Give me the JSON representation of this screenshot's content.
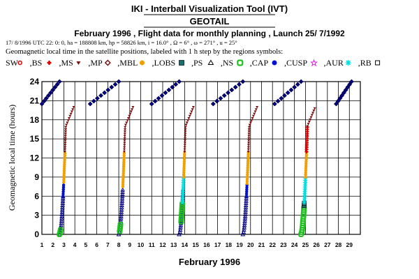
{
  "header": {
    "title": "IKI - Interball Visualization Tool (IVT)",
    "satellite": "GEOTAIL",
    "subtitle": "February 1996 ,  Flight data for monthly planning ,   Launch 25/ 7/1992",
    "orbit_line": "17/ 8/1996 UTC 22: 0: 0, ha = 188808 km, hp =  58826 km, i = 16.0° , Ω =   6° , ω = 271° , u =  25°",
    "desc_line": "Geomagnetic local time in the satellite positions, labeled with 1 h step by the regions symbols:"
  },
  "legend": [
    {
      "label": "SW",
      "symbol": "sun",
      "color": "#e00000"
    },
    {
      "label": "BS",
      "symbol": "cross",
      "color": "#e00000"
    },
    {
      "label": "MS",
      "symbol": "tri-down",
      "color": "#7a1010"
    },
    {
      "label": "MP",
      "symbol": "diamond",
      "color": "#7a1010"
    },
    {
      "label": "MBL",
      "symbol": "dot",
      "color": "#f0a000"
    },
    {
      "label": "LOBS",
      "symbol": "square-split",
      "color": "#1a7070"
    },
    {
      "label": "PS",
      "symbol": "triangle",
      "color": "#000000"
    },
    {
      "label": "NS",
      "symbol": "square-ring",
      "color": "#20c020"
    },
    {
      "label": "CAP",
      "symbol": "dot",
      "color": "#0010d0"
    },
    {
      "label": "CUSP",
      "symbol": "star",
      "color": "#e020e0"
    },
    {
      "label": "AUR",
      "symbol": "asterisk",
      "color": "#00e0e0"
    },
    {
      "label": "RB",
      "symbol": "square",
      "color": "#000000"
    }
  ],
  "chart_data": {
    "type": "scatter",
    "xlabel": "February 1996",
    "ylabel": "Geomagnetic local time (hours)",
    "xlim": [
      1,
      30
    ],
    "ylim": [
      0,
      24
    ],
    "yticks": [
      0,
      3,
      6,
      9,
      12,
      15,
      18,
      21,
      24
    ],
    "xticks": [
      1,
      2,
      3,
      4,
      5,
      6,
      7,
      8,
      9,
      10,
      11,
      12,
      13,
      14,
      15,
      16,
      17,
      18,
      19,
      20,
      21,
      22,
      23,
      24,
      25,
      26,
      27,
      28,
      29
    ],
    "grid": true,
    "orbits": [
      {
        "start": 2.6,
        "segments": [
          {
            "region": "PS",
            "color": "#000080",
            "from": 0,
            "to": 6
          },
          {
            "region": "NS",
            "color": "#20c020",
            "from": 0,
            "to": 0.8
          },
          {
            "region": "CAP",
            "color": "#0010d0",
            "from": 6,
            "to": 8
          },
          {
            "region": "MBL",
            "color": "#f0a000",
            "from": 8.2,
            "to": 13
          },
          {
            "region": "MS",
            "color": "#7a1010",
            "from": 13,
            "to": 20
          }
        ]
      },
      {
        "start": 8.0,
        "segments": [
          {
            "region": "PS",
            "color": "#000080",
            "from": 0,
            "to": 7
          },
          {
            "region": "NS",
            "color": "#20c020",
            "from": 0.5,
            "to": 1.8
          },
          {
            "region": "MBL",
            "color": "#f0a000",
            "from": 7.5,
            "to": 13
          },
          {
            "region": "MS",
            "color": "#7a1010",
            "from": 13,
            "to": 20
          }
        ]
      },
      {
        "start": 13.5,
        "segments": [
          {
            "region": "PS",
            "color": "#000080",
            "from": 0,
            "to": 7
          },
          {
            "region": "NS",
            "color": "#20c020",
            "from": 2,
            "to": 5
          },
          {
            "region": "AUR",
            "color": "#00e0e0",
            "from": 5,
            "to": 9
          },
          {
            "region": "MBL",
            "color": "#f0a000",
            "from": 9,
            "to": 13
          },
          {
            "region": "MS",
            "color": "#7a1010",
            "from": 13,
            "to": 20
          }
        ]
      },
      {
        "start": 19.3,
        "segments": [
          {
            "region": "PS",
            "color": "#000080",
            "from": 0,
            "to": 6
          },
          {
            "region": "CAP",
            "color": "#0010d0",
            "from": 6,
            "to": 8
          },
          {
            "region": "MBL",
            "color": "#f0a000",
            "from": 8,
            "to": 13
          },
          {
            "region": "MS",
            "color": "#7a1010",
            "from": 13,
            "to": 20
          }
        ]
      },
      {
        "start": 24.6,
        "segments": [
          {
            "region": "NS",
            "color": "#20c020",
            "from": 0,
            "to": 4.5
          },
          {
            "region": "LOBS",
            "color": "#1a7070",
            "from": 4.5,
            "to": 5
          },
          {
            "region": "AUR",
            "color": "#00e0e0",
            "from": 5,
            "to": 9
          },
          {
            "region": "MBL",
            "color": "#f0a000",
            "from": 9,
            "to": 13
          },
          {
            "region": "BS",
            "color": "#e00000",
            "from": 13,
            "to": 17
          },
          {
            "region": "MS",
            "color": "#7a1010",
            "from": 17,
            "to": 20
          }
        ]
      }
    ],
    "night_segments": [
      {
        "from_day": 1.0,
        "to_day": 2.6,
        "y0": 20.5,
        "y1": 24
      },
      {
        "from_day": 5.4,
        "to_day": 8.0,
        "y0": 20.5,
        "y1": 24
      },
      {
        "from_day": 11.0,
        "to_day": 13.5,
        "y0": 20.5,
        "y1": 24
      },
      {
        "from_day": 16.6,
        "to_day": 19.3,
        "y0": 20.5,
        "y1": 24
      },
      {
        "from_day": 22.2,
        "to_day": 24.6,
        "y0": 20.5,
        "y1": 24
      },
      {
        "from_day": 27.8,
        "to_day": 29.2,
        "y0": 20.5,
        "y1": 24
      }
    ]
  }
}
